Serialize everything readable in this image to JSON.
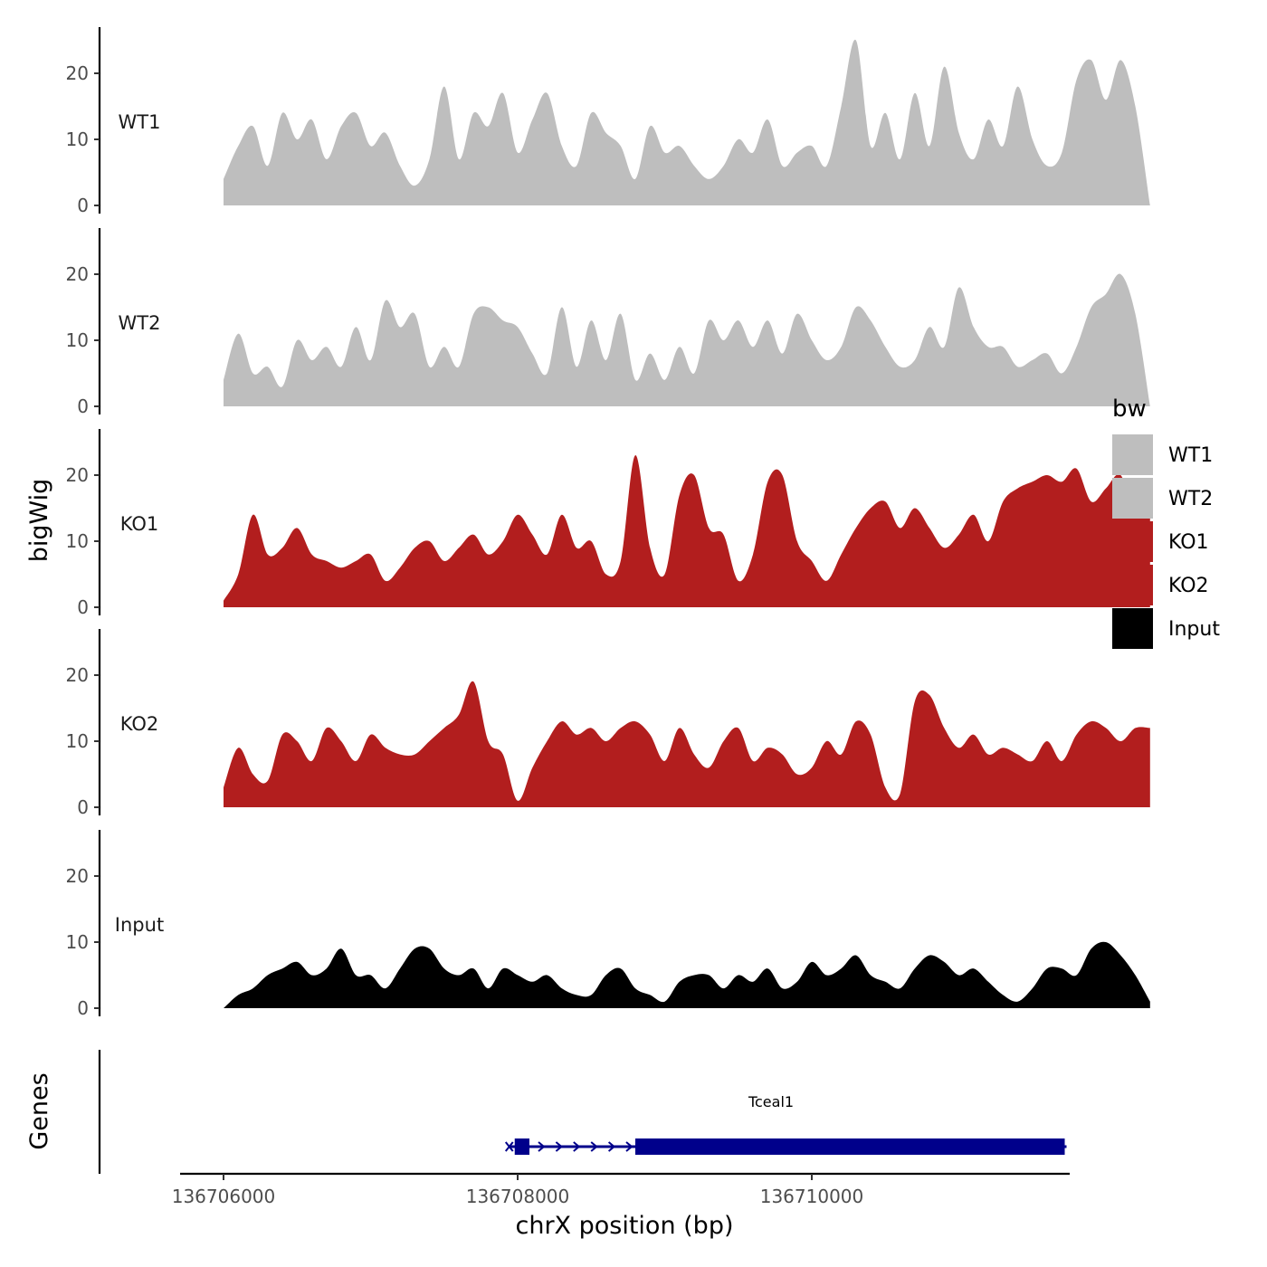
{
  "chart_data": {
    "type": "area",
    "y_axis_title": "bigWig",
    "x_axis_title": "chrX position (bp)",
    "genes_axis_title": "Genes",
    "xlim": [
      136706000,
      136711700
    ],
    "ylim": [
      0,
      26
    ],
    "y_ticks": [
      {
        "value": 0,
        "label": "0"
      },
      {
        "value": 10,
        "label": "10"
      },
      {
        "value": 20,
        "label": "20"
      }
    ],
    "x_ticks": [
      {
        "value": 136706000,
        "label": "136706000"
      },
      {
        "value": 136708000,
        "label": "136708000"
      },
      {
        "value": 136710000,
        "label": "136710000"
      }
    ],
    "x_step_bp": 100,
    "legend": {
      "title": "bw",
      "entries": [
        {
          "label": "WT1",
          "color": "#bebebe"
        },
        {
          "label": "WT2",
          "color": "#bebebe"
        },
        {
          "label": "KO1",
          "color": "#b21e1e"
        },
        {
          "label": "KO2",
          "color": "#b21e1e"
        },
        {
          "label": "Input",
          "color": "#000000"
        }
      ]
    },
    "series": [
      {
        "name": "WT1",
        "color": "#bebebe",
        "x_start": 136706000,
        "values": [
          4,
          9,
          12,
          6,
          14,
          10,
          13,
          7,
          12,
          14,
          9,
          11,
          6,
          3,
          7,
          18,
          7,
          14,
          12,
          17,
          8,
          13,
          17,
          9,
          6,
          14,
          11,
          9,
          4,
          12,
          8,
          9,
          6,
          4,
          6,
          10,
          8,
          13,
          6,
          8,
          9,
          6,
          15,
          25,
          9,
          14,
          7,
          17,
          9,
          21,
          11,
          7,
          13,
          9,
          18,
          10,
          6,
          8,
          19,
          22,
          16,
          22,
          15,
          0
        ]
      },
      {
        "name": "WT2",
        "color": "#bebebe",
        "x_start": 136706000,
        "values": [
          4,
          11,
          5,
          6,
          3,
          10,
          7,
          9,
          6,
          12,
          7,
          16,
          12,
          14,
          6,
          9,
          6,
          14,
          15,
          13,
          12,
          8,
          5,
          15,
          6,
          13,
          7,
          14,
          4,
          8,
          4,
          9,
          5,
          13,
          10,
          13,
          9,
          13,
          8,
          14,
          10,
          7,
          9,
          15,
          13,
          9,
          6,
          7,
          12,
          9,
          18,
          12,
          9,
          9,
          6,
          7,
          8,
          5,
          9,
          15,
          17,
          20,
          14,
          0
        ]
      },
      {
        "name": "KO1",
        "color": "#b21e1e",
        "x_start": 136706000,
        "values": [
          1,
          5,
          14,
          8,
          9,
          12,
          8,
          7,
          6,
          7,
          8,
          4,
          6,
          9,
          10,
          7,
          9,
          11,
          8,
          10,
          14,
          11,
          8,
          14,
          9,
          10,
          5,
          7,
          23,
          9,
          5,
          17,
          20,
          12,
          11,
          4,
          8,
          19,
          20,
          10,
          7,
          4,
          8,
          12,
          15,
          16,
          12,
          15,
          12,
          9,
          11,
          14,
          10,
          16,
          18,
          19,
          20,
          19,
          21,
          16,
          18,
          20,
          14,
          15
        ]
      },
      {
        "name": "KO2",
        "color": "#b21e1e",
        "x_start": 136706000,
        "values": [
          3,
          9,
          5,
          4,
          11,
          10,
          7,
          12,
          10,
          7,
          11,
          9,
          8,
          8,
          10,
          12,
          14,
          19,
          10,
          8,
          1,
          6,
          10,
          13,
          11,
          12,
          10,
          12,
          13,
          11,
          7,
          12,
          8,
          6,
          10,
          12,
          7,
          9,
          8,
          5,
          6,
          10,
          8,
          13,
          11,
          3,
          2,
          16,
          17,
          12,
          9,
          11,
          8,
          9,
          8,
          7,
          10,
          7,
          11,
          13,
          12,
          10,
          12,
          12
        ]
      },
      {
        "name": "Input",
        "color": "#000000",
        "x_start": 136706000,
        "values": [
          0,
          2,
          3,
          5,
          6,
          7,
          5,
          6,
          9,
          5,
          5,
          3,
          6,
          9,
          9,
          6,
          5,
          6,
          3,
          6,
          5,
          4,
          5,
          3,
          2,
          2,
          5,
          6,
          3,
          2,
          1,
          4,
          5,
          5,
          3,
          5,
          4,
          6,
          3,
          4,
          7,
          5,
          6,
          8,
          5,
          4,
          3,
          6,
          8,
          7,
          5,
          6,
          4,
          2,
          1,
          3,
          6,
          6,
          5,
          9,
          10,
          8,
          5,
          1
        ]
      }
    ],
    "genes": [
      {
        "name": "Tceal1",
        "start": 136707980,
        "end": 136711720,
        "strand": "+",
        "exons": [
          [
            136707980,
            136708080
          ],
          [
            136708800,
            136711720
          ]
        ]
      }
    ]
  }
}
